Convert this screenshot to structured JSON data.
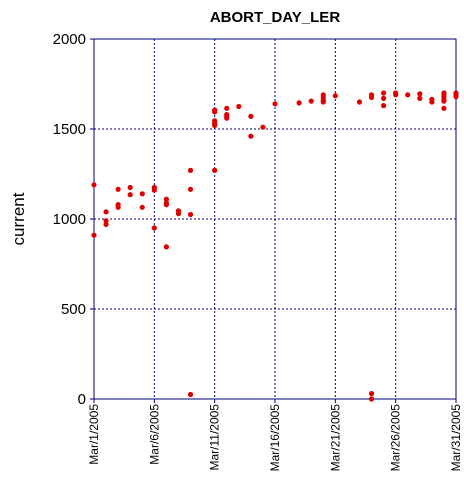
{
  "chart_data": {
    "type": "scatter",
    "title": "ABORT_DAY_LER",
    "ylabel": "current",
    "xlabel": "",
    "xlim": [
      "2005-03-01",
      "2005-03-31"
    ],
    "ylim": [
      0,
      2000
    ],
    "x_ticks": [
      "2005-03-01",
      "2005-03-06",
      "2005-03-11",
      "2005-03-16",
      "2005-03-21",
      "2005-03-26",
      "2005-03-31"
    ],
    "x_tick_labels": [
      "Mar/1/2005",
      "Mar/6/2005",
      "Mar/11/2005",
      "Mar/16/2005",
      "Mar/21/2005",
      "Mar/26/2005",
      "Mar/31/2005"
    ],
    "y_ticks": [
      0,
      500,
      1000,
      1500,
      2000
    ],
    "y_tick_labels": [
      "0",
      "500",
      "1000",
      "1500",
      "2000"
    ],
    "grid": true,
    "point_color": "#dd0000",
    "points": [
      [
        "2005-03-01",
        1190
      ],
      [
        "2005-03-01",
        910
      ],
      [
        "2005-03-02",
        1040
      ],
      [
        "2005-03-02",
        990
      ],
      [
        "2005-03-02",
        970
      ],
      [
        "2005-03-03",
        1165
      ],
      [
        "2005-03-03",
        1080
      ],
      [
        "2005-03-03",
        1065
      ],
      [
        "2005-03-04",
        1175
      ],
      [
        "2005-03-04",
        1135
      ],
      [
        "2005-03-05",
        1140
      ],
      [
        "2005-03-05",
        1065
      ],
      [
        "2005-03-06",
        1175
      ],
      [
        "2005-03-06",
        1160
      ],
      [
        "2005-03-06",
        950
      ],
      [
        "2005-03-07",
        1110
      ],
      [
        "2005-03-07",
        1090
      ],
      [
        "2005-03-07",
        1080
      ],
      [
        "2005-03-07",
        845
      ],
      [
        "2005-03-08",
        1045
      ],
      [
        "2005-03-08",
        1030
      ],
      [
        "2005-03-09",
        1270
      ],
      [
        "2005-03-09",
        1165
      ],
      [
        "2005-03-09",
        1025
      ],
      [
        "2005-03-09",
        25
      ],
      [
        "2005-03-11",
        1605
      ],
      [
        "2005-03-11",
        1595
      ],
      [
        "2005-03-11",
        1545
      ],
      [
        "2005-03-11",
        1530
      ],
      [
        "2005-03-11",
        1520
      ],
      [
        "2005-03-11",
        1270
      ],
      [
        "2005-03-12",
        1615
      ],
      [
        "2005-03-12",
        1580
      ],
      [
        "2005-03-12",
        1570
      ],
      [
        "2005-03-12",
        1560
      ],
      [
        "2005-03-13",
        1625
      ],
      [
        "2005-03-14",
        1570
      ],
      [
        "2005-03-14",
        1460
      ],
      [
        "2005-03-15",
        1510
      ],
      [
        "2005-03-16",
        1640
      ],
      [
        "2005-03-18",
        1645
      ],
      [
        "2005-03-19",
        1655
      ],
      [
        "2005-03-20",
        1690
      ],
      [
        "2005-03-20",
        1675
      ],
      [
        "2005-03-20",
        1660
      ],
      [
        "2005-03-20",
        1650
      ],
      [
        "2005-03-21",
        1685
      ],
      [
        "2005-03-23",
        1650
      ],
      [
        "2005-03-24",
        1690
      ],
      [
        "2005-03-24",
        1675
      ],
      [
        "2005-03-24",
        30
      ],
      [
        "2005-03-24",
        0
      ],
      [
        "2005-03-25",
        1700
      ],
      [
        "2005-03-25",
        1670
      ],
      [
        "2005-03-25",
        1630
      ],
      [
        "2005-03-26",
        1700
      ],
      [
        "2005-03-26",
        1690
      ],
      [
        "2005-03-27",
        1690
      ],
      [
        "2005-03-28",
        1695
      ],
      [
        "2005-03-28",
        1670
      ],
      [
        "2005-03-29",
        1665
      ],
      [
        "2005-03-29",
        1650
      ],
      [
        "2005-03-30",
        1700
      ],
      [
        "2005-03-30",
        1690
      ],
      [
        "2005-03-30",
        1680
      ],
      [
        "2005-03-30",
        1665
      ],
      [
        "2005-03-30",
        1655
      ],
      [
        "2005-03-30",
        1615
      ],
      [
        "2005-03-31",
        1700
      ],
      [
        "2005-03-31",
        1690
      ],
      [
        "2005-03-31",
        1680
      ]
    ]
  }
}
